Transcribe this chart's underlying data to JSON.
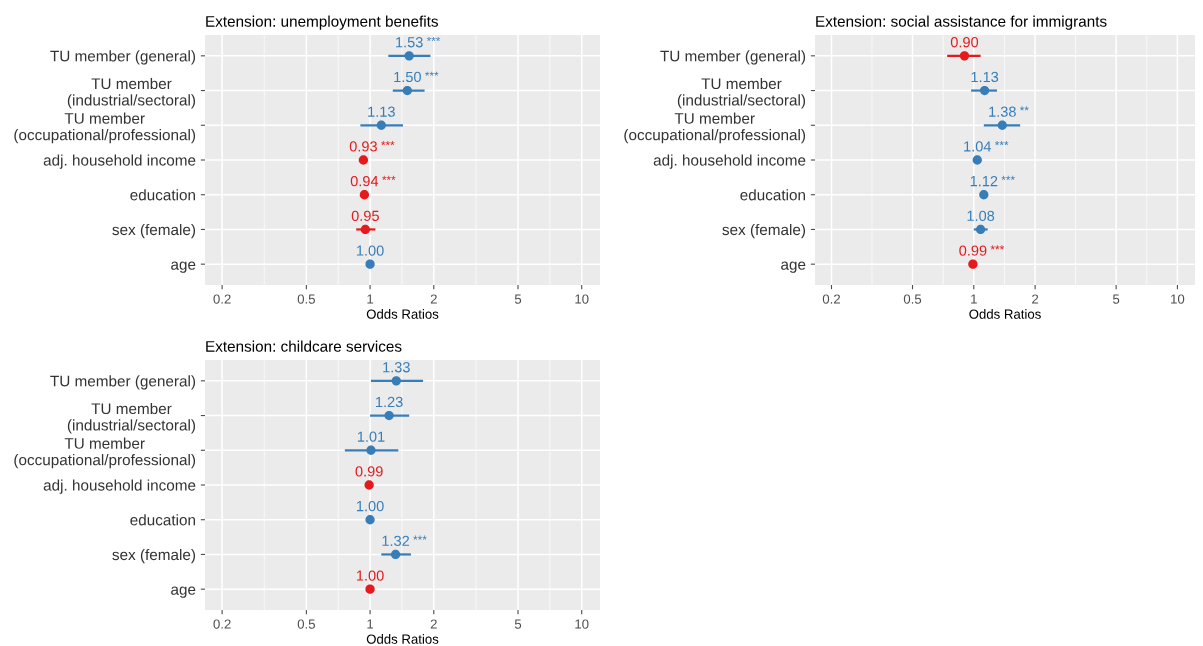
{
  "chart_data": [
    {
      "type": "scatter",
      "orientation": "horizontal",
      "title": "Extension: unemployment benefits",
      "xlabel": "Odds Ratios",
      "log": "x",
      "grid": true,
      "marker": "circle",
      "categories": [
        "TU member (general)",
        "TU member\n(industrial/sectoral)",
        "TU member\n(occupational/professional)",
        "adj. household income",
        "education",
        "sex (female)",
        "age"
      ],
      "xlim": [
        0.166,
        12.2
      ],
      "xticks": [
        0.2,
        0.5,
        1,
        2,
        5,
        10
      ],
      "series": [
        {
          "values": [
            1.53,
            1.5,
            1.13,
            0.93,
            0.94,
            0.95,
            1.0
          ],
          "colors": [
            "#377eb8",
            "#377eb8",
            "#377eb8",
            "#e41a1c",
            "#e41a1c",
            "#e41a1c",
            "#377eb8"
          ],
          "errors": [
            [
              1.22,
              1.93
            ],
            [
              1.28,
              1.81
            ],
            [
              0.9,
              1.43
            ],
            null,
            null,
            [
              0.86,
              1.06
            ],
            null
          ],
          "value_labels": [
            "1.53 ***",
            "1.50 ***",
            "1.13",
            "0.93 ***",
            "0.94 ***",
            "0.95",
            "1.00"
          ]
        }
      ]
    },
    {
      "type": "scatter",
      "orientation": "horizontal",
      "title": "Extension: social assistance for immigrants",
      "xlabel": "Odds Ratios",
      "log": "x",
      "grid": true,
      "marker": "circle",
      "categories": [
        "TU member (general)",
        "TU member\n(industrial/sectoral)",
        "TU member\n(occupational/professional)",
        "adj. household income",
        "education",
        "sex (female)",
        "age"
      ],
      "xlim": [
        0.166,
        12.2
      ],
      "xticks": [
        0.2,
        0.5,
        1,
        2,
        5,
        10
      ],
      "series": [
        {
          "values": [
            0.9,
            1.13,
            1.38,
            1.04,
            1.12,
            1.08,
            0.99
          ],
          "colors": [
            "#e41a1c",
            "#377eb8",
            "#377eb8",
            "#377eb8",
            "#377eb8",
            "#377eb8",
            "#e41a1c"
          ],
          "errors": [
            [
              0.74,
              1.08
            ],
            [
              0.97,
              1.3
            ],
            [
              1.12,
              1.69
            ],
            null,
            null,
            [
              1.0,
              1.17
            ],
            null
          ],
          "value_labels": [
            "0.90",
            "1.13",
            "1.38 **",
            "1.04 ***",
            "1.12 ***",
            "1.08",
            "0.99 ***"
          ]
        }
      ]
    },
    {
      "type": "scatter",
      "orientation": "horizontal",
      "title": "Extension: childcare services",
      "xlabel": "Odds Ratios",
      "log": "x",
      "grid": true,
      "marker": "circle",
      "categories": [
        "TU member (general)",
        "TU member\n(industrial/sectoral)",
        "TU member\n(occupational/professional)",
        "adj. household income",
        "education",
        "sex (female)",
        "age"
      ],
      "xlim": [
        0.166,
        12.2
      ],
      "xticks": [
        0.2,
        0.5,
        1,
        2,
        5,
        10
      ],
      "series": [
        {
          "values": [
            1.33,
            1.23,
            1.01,
            0.99,
            1.0,
            1.32,
            1.0
          ],
          "colors": [
            "#377eb8",
            "#377eb8",
            "#377eb8",
            "#e41a1c",
            "#377eb8",
            "#377eb8",
            "#e41a1c"
          ],
          "errors": [
            [
              1.01,
              1.78
            ],
            [
              1.0,
              1.53
            ],
            [
              0.76,
              1.36
            ],
            null,
            null,
            [
              1.13,
              1.56
            ],
            null
          ],
          "value_labels": [
            "1.33",
            "1.23",
            "1.01",
            "0.99",
            "1.00",
            "1.32 ***",
            "1.00"
          ]
        }
      ]
    }
  ]
}
